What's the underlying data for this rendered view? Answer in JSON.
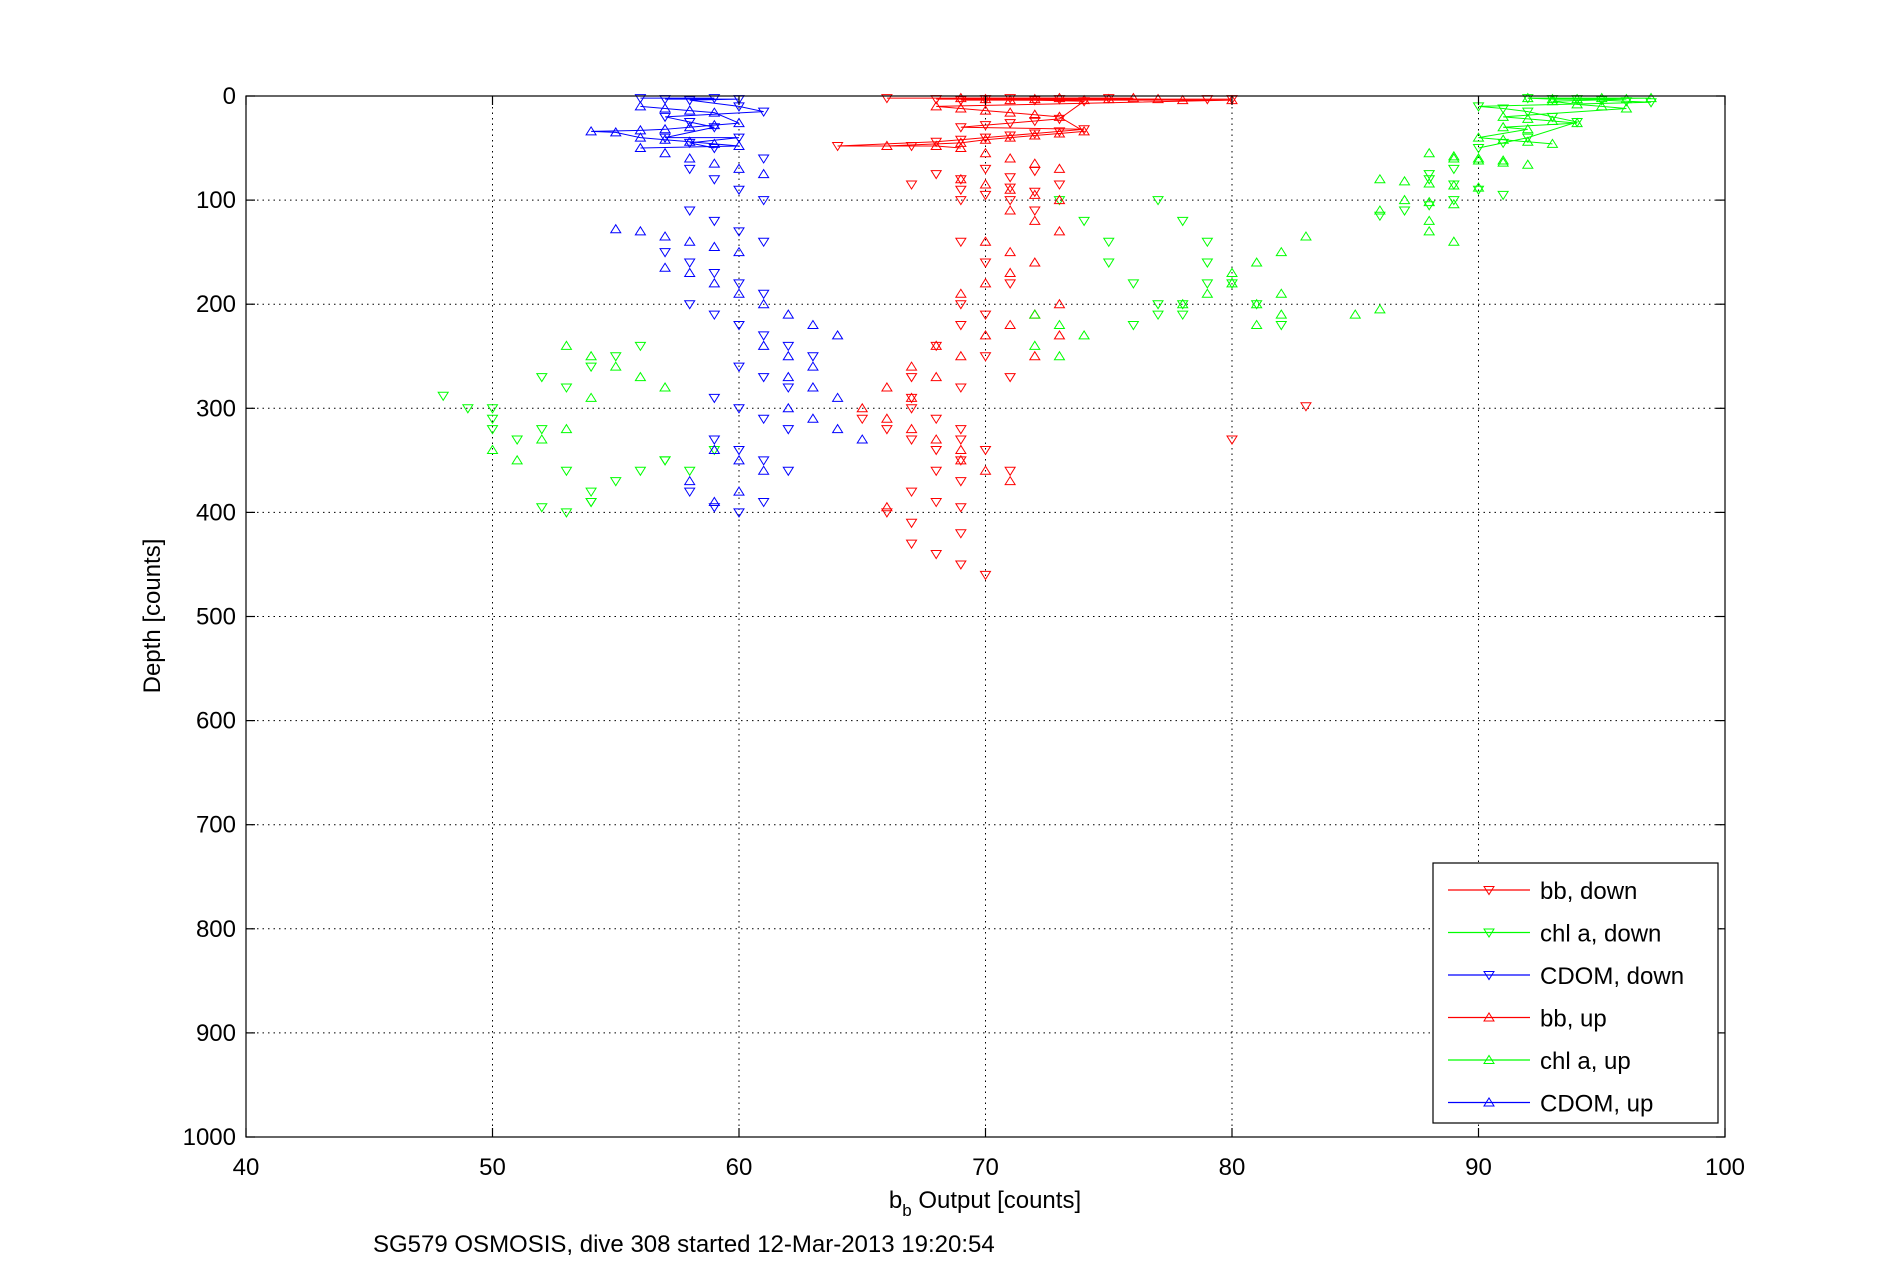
{
  "chart_data": {
    "type": "scatter",
    "title": "",
    "caption": "SG579 OSMOSIS, dive 308 started 12-Mar-2013 19:20:54",
    "xlabel_main": "b",
    "xlabel_sub": "b",
    "xlabel_rest": " Output [counts]",
    "ylabel": "Depth [counts]",
    "xlim": [
      40,
      100
    ],
    "ylim": [
      0,
      1000
    ],
    "y_reversed": true,
    "grid": true,
    "xticks": [
      "40",
      "50",
      "60",
      "70",
      "80",
      "90",
      "100"
    ],
    "yticks": [
      "0",
      "100",
      "200",
      "300",
      "400",
      "500",
      "600",
      "700",
      "800",
      "900",
      "1000"
    ],
    "legend_position": "bottom-right",
    "colors": {
      "bb": "#ff0000",
      "chl": "#00ff00",
      "cdom": "#0000ff"
    },
    "series": [
      {
        "name": "bb, down",
        "color": "#ff0000",
        "marker": "triangle-down",
        "x": [
          66,
          68,
          69,
          70,
          71,
          72,
          73,
          74,
          75,
          79,
          80,
          64,
          67,
          69,
          70,
          71,
          72,
          73,
          68,
          69,
          70,
          71,
          72,
          73,
          74,
          68,
          69,
          70,
          71,
          72,
          73,
          67,
          69,
          70,
          71,
          72,
          69,
          71,
          72,
          69,
          70,
          71,
          69,
          70,
          69,
          68,
          70,
          67,
          67,
          69,
          71,
          65,
          66,
          67,
          68,
          69,
          68,
          69,
          67,
          68,
          69,
          66,
          67,
          69,
          67,
          68,
          69,
          70,
          67,
          68,
          69,
          69,
          70,
          71,
          80,
          83
        ],
        "y": [
          2,
          3,
          4,
          3,
          2,
          4,
          3,
          5,
          2,
          3,
          3,
          48,
          48,
          30,
          28,
          26,
          24,
          22,
          44,
          42,
          40,
          38,
          36,
          34,
          32,
          75,
          80,
          70,
          78,
          72,
          85,
          85,
          90,
          95,
          88,
          92,
          100,
          100,
          110,
          140,
          160,
          180,
          200,
          210,
          220,
          240,
          250,
          270,
          290,
          280,
          270,
          310,
          320,
          330,
          340,
          350,
          360,
          370,
          380,
          390,
          395,
          400,
          410,
          420,
          430,
          440,
          450,
          460,
          300,
          310,
          320,
          330,
          340,
          360,
          330,
          298
        ]
      },
      {
        "name": "chl a, down",
        "color": "#00ff00",
        "marker": "triangle-down",
        "x": [
          92,
          93,
          94,
          95,
          96,
          97,
          90,
          91,
          92,
          93,
          94,
          92,
          91,
          90,
          89,
          88,
          88,
          89,
          90,
          91,
          89,
          88,
          87,
          86,
          77,
          78,
          79,
          79,
          80,
          81,
          82,
          79,
          78,
          77,
          76,
          75,
          74,
          73,
          75,
          76,
          77,
          78,
          48,
          49,
          50,
          50,
          51,
          52,
          50,
          53,
          52,
          54,
          55,
          56,
          57,
          53,
          54,
          54,
          55,
          56,
          57,
          58,
          59,
          52,
          53,
          54
        ],
        "y": [
          2,
          3,
          3,
          4,
          5,
          6,
          10,
          12,
          15,
          20,
          25,
          40,
          45,
          50,
          70,
          75,
          80,
          85,
          90,
          95,
          100,
          105,
          110,
          115,
          100,
          120,
          140,
          160,
          180,
          200,
          220,
          180,
          200,
          210,
          220,
          140,
          120,
          100,
          160,
          180,
          200,
          210,
          288,
          300,
          310,
          320,
          330,
          320,
          300,
          280,
          270,
          260,
          250,
          240,
          350,
          360,
          380,
          390,
          370,
          360,
          350,
          360,
          340,
          395,
          400,
          390
        ]
      },
      {
        "name": "CDOM, down",
        "color": "#0000ff",
        "marker": "triangle-down",
        "x": [
          56,
          57,
          58,
          59,
          60,
          57,
          58,
          59,
          60,
          61,
          57,
          58,
          59,
          60,
          61,
          58,
          59,
          60,
          61,
          58,
          59,
          60,
          61,
          57,
          58,
          59,
          60,
          61,
          58,
          59,
          60,
          61,
          62,
          63,
          60,
          61,
          62,
          59,
          60,
          61,
          62,
          59,
          60,
          61,
          62,
          58,
          59,
          60,
          61
        ],
        "y": [
          2,
          3,
          4,
          2,
          3,
          20,
          25,
          30,
          10,
          15,
          40,
          45,
          50,
          40,
          60,
          70,
          80,
          90,
          100,
          110,
          120,
          130,
          140,
          150,
          160,
          170,
          180,
          190,
          200,
          210,
          220,
          230,
          240,
          250,
          260,
          270,
          280,
          290,
          300,
          310,
          320,
          330,
          340,
          350,
          360,
          380,
          395,
          400,
          390
        ]
      },
      {
        "name": "bb, up",
        "color": "#ff0000",
        "marker": "triangle-up",
        "x": [
          69,
          70,
          71,
          72,
          73,
          74,
          75,
          76,
          77,
          78,
          80,
          66,
          68,
          69,
          70,
          71,
          72,
          73,
          74,
          68,
          69,
          70,
          71,
          72,
          73,
          69,
          70,
          71,
          72,
          73,
          69,
          70,
          71,
          72,
          73,
          71,
          72,
          73,
          70,
          71,
          72,
          71,
          70,
          69,
          73,
          72,
          71,
          70,
          68,
          69,
          67,
          68,
          66,
          67,
          65,
          66,
          67,
          68,
          69,
          69,
          70,
          71,
          72,
          73,
          66
        ],
        "y": [
          2,
          3,
          4,
          3,
          2,
          4,
          3,
          2,
          3,
          4,
          4,
          48,
          48,
          45,
          42,
          40,
          38,
          36,
          34,
          10,
          12,
          14,
          16,
          18,
          20,
          50,
          55,
          60,
          65,
          70,
          80,
          85,
          90,
          95,
          100,
          110,
          120,
          130,
          140,
          150,
          160,
          170,
          180,
          190,
          200,
          210,
          220,
          230,
          240,
          250,
          260,
          270,
          280,
          290,
          300,
          310,
          320,
          330,
          340,
          350,
          360,
          370,
          250,
          230,
          395
        ]
      },
      {
        "name": "chl a, up",
        "color": "#00ff00",
        "marker": "triangle-up",
        "x": [
          92,
          93,
          94,
          95,
          96,
          97,
          93,
          94,
          95,
          96,
          91,
          92,
          93,
          94,
          91,
          92,
          90,
          91,
          92,
          93,
          89,
          90,
          91,
          92,
          88,
          89,
          90,
          91,
          86,
          87,
          88,
          89,
          90,
          87,
          88,
          89,
          86,
          88,
          88,
          89,
          85,
          86,
          83,
          82,
          81,
          80,
          82,
          81,
          82,
          81,
          80,
          79,
          78,
          72,
          73,
          74,
          72,
          73,
          53,
          54,
          55,
          56,
          57,
          54,
          53,
          52,
          50,
          51
        ],
        "y": [
          2,
          3,
          3,
          2,
          3,
          2,
          5,
          8,
          10,
          12,
          20,
          22,
          24,
          26,
          30,
          32,
          40,
          42,
          44,
          46,
          60,
          62,
          64,
          66,
          55,
          58,
          60,
          62,
          80,
          82,
          84,
          86,
          88,
          100,
          102,
          104,
          110,
          120,
          130,
          140,
          210,
          205,
          135,
          150,
          160,
          170,
          190,
          200,
          210,
          220,
          180,
          190,
          200,
          210,
          220,
          230,
          240,
          250,
          240,
          250,
          260,
          270,
          280,
          290,
          320,
          330,
          340,
          350
        ]
      },
      {
        "name": "CDOM, up",
        "color": "#0000ff",
        "marker": "triangle-up",
        "x": [
          54,
          55,
          56,
          57,
          58,
          59,
          60,
          56,
          57,
          58,
          59,
          56,
          57,
          58,
          59,
          60,
          56,
          57,
          58,
          59,
          60,
          61,
          55,
          56,
          57,
          58,
          59,
          60,
          57,
          58,
          59,
          60,
          61,
          62,
          63,
          64,
          61,
          62,
          63,
          62,
          63,
          64,
          62,
          63,
          64,
          65,
          59,
          60,
          61,
          58,
          60,
          59
        ],
        "y": [
          34,
          35,
          33,
          32,
          30,
          28,
          26,
          10,
          12,
          14,
          16,
          40,
          42,
          44,
          46,
          48,
          50,
          55,
          60,
          65,
          70,
          75,
          128,
          130,
          135,
          140,
          145,
          150,
          165,
          170,
          180,
          190,
          200,
          210,
          220,
          230,
          240,
          250,
          260,
          270,
          280,
          290,
          300,
          310,
          320,
          330,
          340,
          350,
          360,
          370,
          380,
          390
        ]
      }
    ]
  }
}
